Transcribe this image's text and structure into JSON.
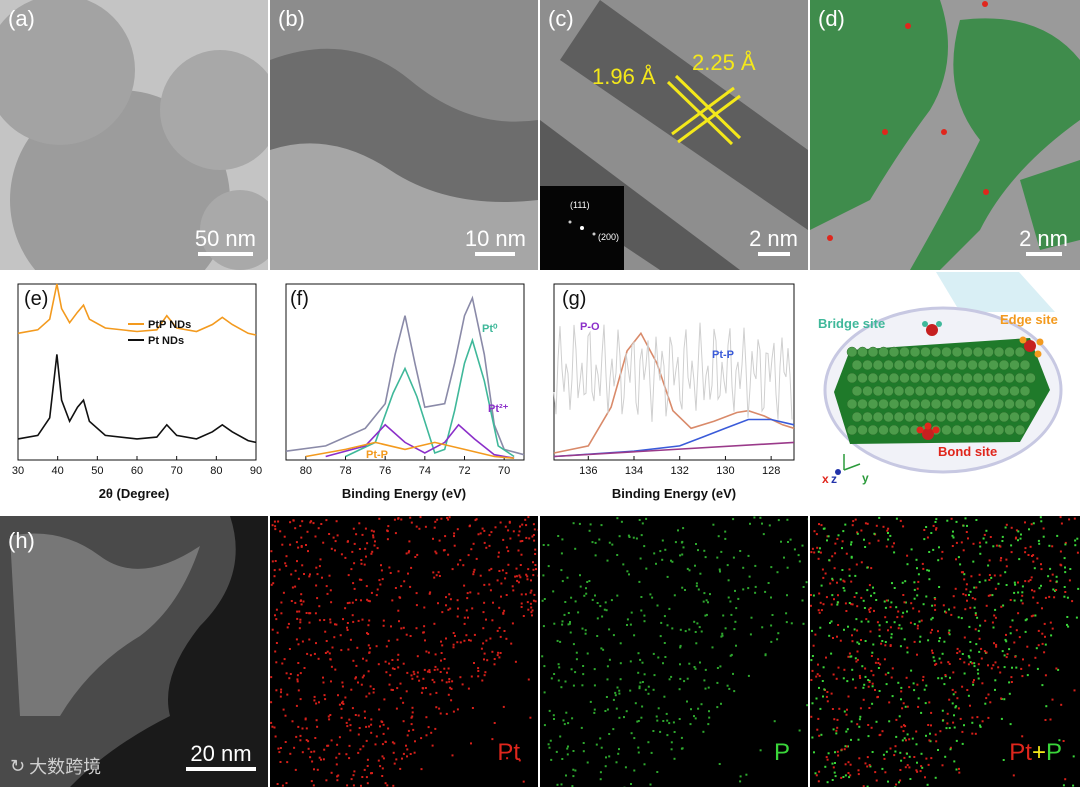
{
  "panels": {
    "a": {
      "label": "(a)",
      "scale": "50 nm"
    },
    "b": {
      "label": "(b)",
      "scale": "10 nm"
    },
    "c": {
      "label": "(c)",
      "scale": "2 nm",
      "d1": "1.96 Å",
      "d2": "2.25 Å",
      "fft_labels": [
        "(111)",
        "(200)"
      ]
    },
    "d": {
      "label": "(d)",
      "scale": "2 nm"
    },
    "e": {
      "label": "(e)",
      "xlabel": "2θ (Degree)"
    },
    "f": {
      "label": "(f)",
      "xlabel": "Binding Energy (eV)"
    },
    "g": {
      "label": "(g)",
      "xlabel": "Binding Energy (eV)"
    },
    "model": {
      "bridge": "Bridge site",
      "edge": "Edge site",
      "bond": "Bond site",
      "axes": {
        "x": "x",
        "z": "z",
        "y": "y"
      }
    },
    "h": {
      "label": "(h)",
      "scale": "20 nm",
      "pt": "Pt",
      "p": "P",
      "ptp_pt": "Pt",
      "ptp_plus": "+",
      "ptp_p": "P"
    }
  },
  "watermark": "大数跨境",
  "colors": {
    "yellow": "#f4e81a",
    "orange": "#f39a1e",
    "green": "#3aa24a",
    "red": "#e0261c",
    "purple": "#8b2fc9",
    "teal": "#3fb89a",
    "blue": "#3a5bd9"
  },
  "chart_data": [
    {
      "type": "line",
      "panel": "e",
      "xlabel": "2θ (Degree)",
      "xlim": [
        30,
        90
      ],
      "xticks": [
        30,
        40,
        50,
        60,
        70,
        80,
        90
      ],
      "legend": "top-left",
      "series": [
        {
          "name": "PtP NDs",
          "color": "#f39a1e",
          "x": [
            30,
            35,
            38,
            39.8,
            41,
            43,
            45,
            46.5,
            48,
            52,
            60,
            65,
            67.5,
            70,
            75,
            79,
            81.5,
            84,
            88,
            90
          ],
          "y": [
            0.72,
            0.74,
            0.8,
            1.0,
            0.86,
            0.78,
            0.84,
            0.88,
            0.8,
            0.75,
            0.73,
            0.74,
            0.82,
            0.75,
            0.73,
            0.77,
            0.81,
            0.77,
            0.72,
            0.71
          ]
        },
        {
          "name": "Pt NDs",
          "color": "#111111",
          "x": [
            30,
            35,
            38,
            39.8,
            41,
            43,
            45,
            46.5,
            48,
            52,
            60,
            65,
            67.5,
            70,
            75,
            79,
            81.5,
            84,
            88,
            90
          ],
          "y": [
            0.12,
            0.14,
            0.24,
            0.6,
            0.34,
            0.22,
            0.3,
            0.34,
            0.22,
            0.14,
            0.12,
            0.13,
            0.2,
            0.14,
            0.12,
            0.16,
            0.2,
            0.16,
            0.11,
            0.1
          ]
        }
      ]
    },
    {
      "type": "line",
      "panel": "f",
      "xlabel": "Binding Energy (eV)",
      "xlim": [
        81,
        69
      ],
      "xticks": [
        80,
        78,
        76,
        74,
        72,
        70
      ],
      "annotations": [
        "Pt⁰",
        "Pt²⁺",
        "Pt-P"
      ],
      "series": [
        {
          "color": "#8a8aa8",
          "x": [
            81,
            79,
            77,
            76,
            75.5,
            75,
            74.5,
            74,
            73,
            72.5,
            72,
            71.6,
            71,
            70.5,
            70,
            69
          ],
          "y": [
            0.05,
            0.08,
            0.18,
            0.32,
            0.6,
            0.82,
            0.55,
            0.3,
            0.32,
            0.55,
            0.82,
            0.92,
            0.6,
            0.2,
            0.06,
            0.03
          ]
        },
        {
          "color": "#3fb89a",
          "x": [
            78,
            76.5,
            75.6,
            75,
            74.4,
            73.5,
            73,
            72.5,
            72,
            71.6,
            71,
            70.3,
            69.5
          ],
          "y": [
            0.02,
            0.1,
            0.38,
            0.52,
            0.36,
            0.04,
            0.06,
            0.28,
            0.55,
            0.68,
            0.45,
            0.08,
            0.02
          ]
        },
        {
          "color": "#8b2fc9",
          "x": [
            79,
            77,
            76,
            75,
            74,
            73,
            72.3,
            71.5,
            70.5,
            69.5
          ],
          "y": [
            0.02,
            0.08,
            0.2,
            0.1,
            0.04,
            0.1,
            0.2,
            0.12,
            0.03,
            0.01
          ]
        },
        {
          "color": "#f39a1e",
          "x": [
            80,
            78,
            76.5,
            75,
            73.5,
            72,
            70.5,
            69.5
          ],
          "y": [
            0.02,
            0.06,
            0.1,
            0.06,
            0.1,
            0.06,
            0.02,
            0.01
          ]
        }
      ]
    },
    {
      "type": "line",
      "panel": "g",
      "xlabel": "Binding Energy (eV)",
      "xlim": [
        137.5,
        127
      ],
      "xticks": [
        136,
        134,
        132,
        130,
        128
      ],
      "annotations": [
        "P-O",
        "Pt-P"
      ],
      "series": [
        {
          "color": "#d98a6a",
          "x": [
            137.5,
            136,
            135,
            134.3,
            133.7,
            133,
            132.3,
            131.5,
            130.5,
            129.5,
            129,
            128.3,
            127.5,
            127
          ],
          "y": [
            0.04,
            0.08,
            0.3,
            0.62,
            0.72,
            0.55,
            0.28,
            0.18,
            0.22,
            0.27,
            0.28,
            0.25,
            0.2,
            0.18
          ]
        },
        {
          "color": "#3a5bd9",
          "x": [
            137.5,
            134,
            132,
            131,
            130,
            129,
            128,
            127
          ],
          "y": [
            0.02,
            0.05,
            0.08,
            0.13,
            0.18,
            0.23,
            0.23,
            0.2
          ]
        },
        {
          "color": "#9a3a8a",
          "x": [
            137.5,
            127
          ],
          "y": [
            0.02,
            0.1
          ]
        }
      ]
    }
  ]
}
